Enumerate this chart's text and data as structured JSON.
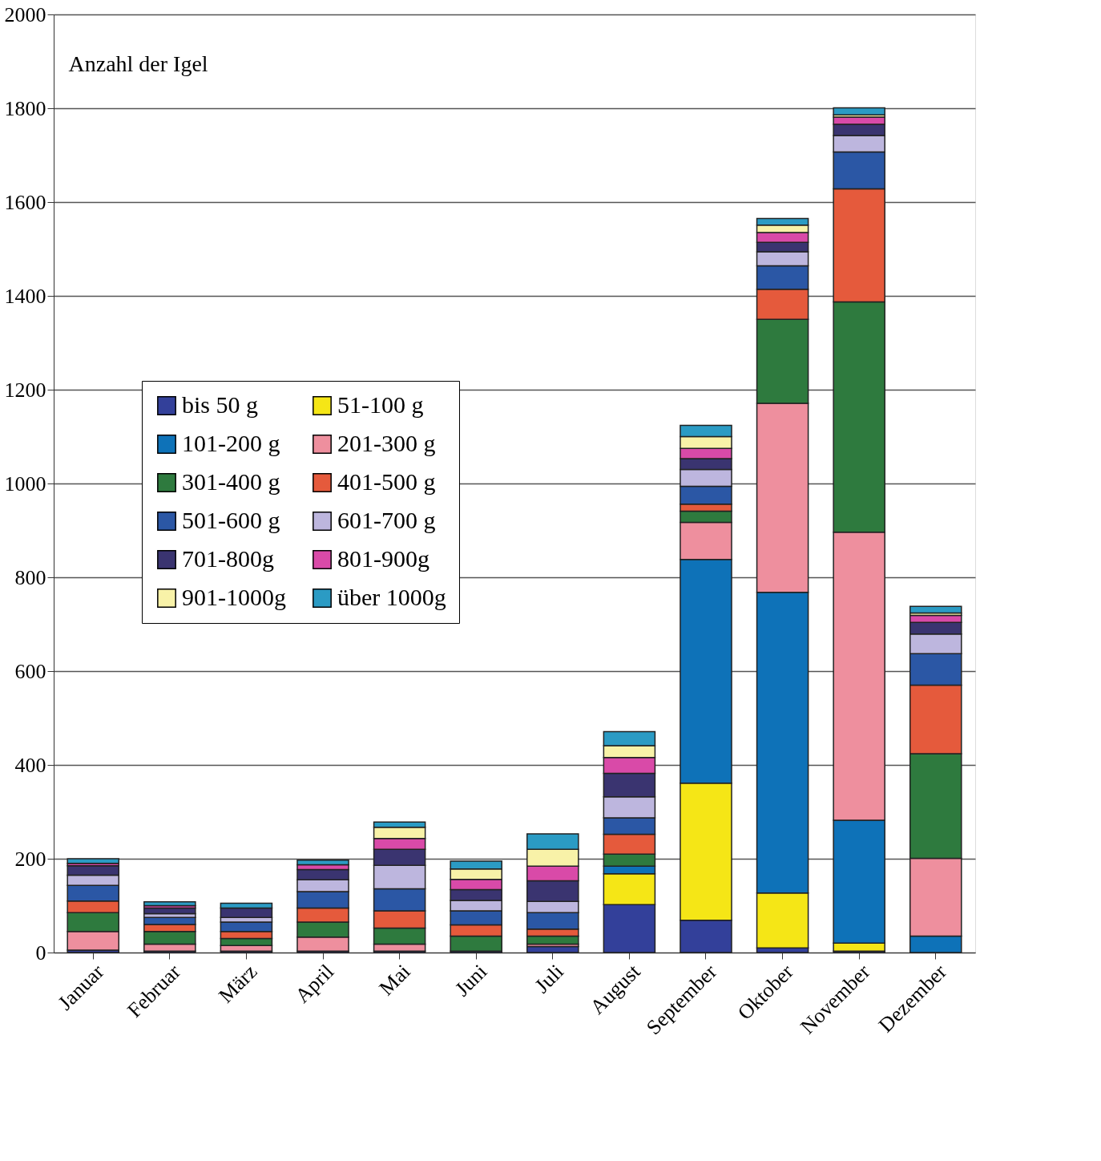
{
  "chart_data": {
    "type": "bar",
    "stacked": true,
    "ylabel": "Anzahl der Igel",
    "categories": [
      "Januar",
      "Februar",
      "März",
      "April",
      "Mai",
      "Juni",
      "Juli",
      "August",
      "September",
      "Oktober",
      "November",
      "Dezember"
    ],
    "series": [
      {
        "name": "bis 50 g",
        "color": "#33409a",
        "values": [
          5,
          3,
          3,
          3,
          3,
          3,
          13,
          102,
          69,
          10,
          3,
          0
        ]
      },
      {
        "name": "51-100 g",
        "color": "#f5e616",
        "values": [
          0,
          0,
          0,
          0,
          0,
          0,
          0,
          66,
          292,
          117,
          17,
          0
        ]
      },
      {
        "name": "101-200 g",
        "color": "#0e72b8",
        "values": [
          0,
          0,
          0,
          0,
          0,
          0,
          0,
          16,
          477,
          641,
          262,
          35
        ]
      },
      {
        "name": "201-300 g",
        "color": "#ee8f9e",
        "values": [
          40,
          15,
          12,
          30,
          15,
          0,
          5,
          0,
          79,
          403,
          614,
          166
        ]
      },
      {
        "name": "301-400 g",
        "color": "#2e7a3e",
        "values": [
          40,
          27,
          15,
          32,
          34,
          32,
          17,
          26,
          24,
          179,
          491,
          223
        ]
      },
      {
        "name": "401-500 g",
        "color": "#e55a3c",
        "values": [
          25,
          15,
          15,
          30,
          37,
          24,
          15,
          42,
          15,
          64,
          241,
          146
        ]
      },
      {
        "name": "501-600 g",
        "color": "#2b57a5",
        "values": [
          33,
          15,
          20,
          35,
          47,
          30,
          35,
          35,
          38,
          50,
          79,
          67
        ]
      },
      {
        "name": "601-700 g",
        "color": "#bdb6de",
        "values": [
          22,
          8,
          10,
          25,
          50,
          22,
          24,
          45,
          36,
          30,
          35,
          42
        ]
      },
      {
        "name": "701-800g",
        "color": "#3a3470",
        "values": [
          20,
          12,
          20,
          22,
          34,
          23,
          44,
          50,
          23,
          20,
          24,
          25
        ]
      },
      {
        "name": "801-900g",
        "color": "#d94aa8",
        "values": [
          5,
          5,
          null,
          10,
          23,
          22,
          31,
          34,
          22,
          21,
          15,
          15
        ]
      },
      {
        "name": "901-1000g",
        "color": "#f8f2a8",
        "values": [
          0,
          0,
          0,
          0,
          24,
          22,
          36,
          25,
          25,
          16,
          5,
          5
        ]
      },
      {
        "name": "über 1000g",
        "color": "#2b9bc4",
        "values": [
          10,
          8,
          10,
          10,
          11,
          17,
          33,
          30,
          24,
          14,
          15,
          14
        ]
      }
    ],
    "ylim": [
      0,
      2000
    ],
    "yticks": [
      0,
      200,
      400,
      600,
      800,
      1000,
      1200,
      1400,
      1600,
      1800,
      2000
    ],
    "grid": "y",
    "legend": "left"
  }
}
